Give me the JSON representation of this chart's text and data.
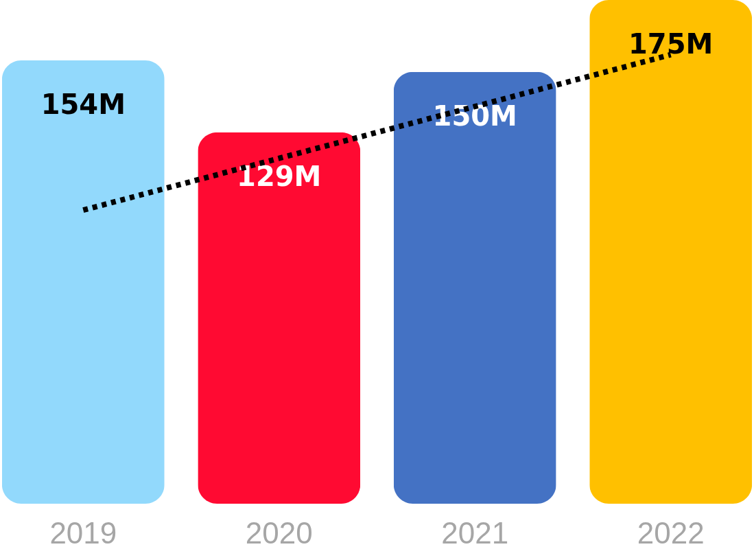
{
  "chart_data": {
    "type": "bar",
    "categories": [
      "2019",
      "2020",
      "2021",
      "2022"
    ],
    "series": [
      {
        "values": [
          154,
          129,
          150,
          175
        ],
        "colors": [
          "#92d9fc",
          "#ff0a32",
          "#4472c4",
          "#ffc000"
        ],
        "value_labels": [
          "154M",
          "129M",
          "150M",
          "175M"
        ]
      },
      {
        "type": "line",
        "values": [
          102,
          120,
          138,
          156
        ],
        "color": "#000000",
        "line_style": "dotted"
      }
    ],
    "grid": false,
    "legend": false
  }
}
